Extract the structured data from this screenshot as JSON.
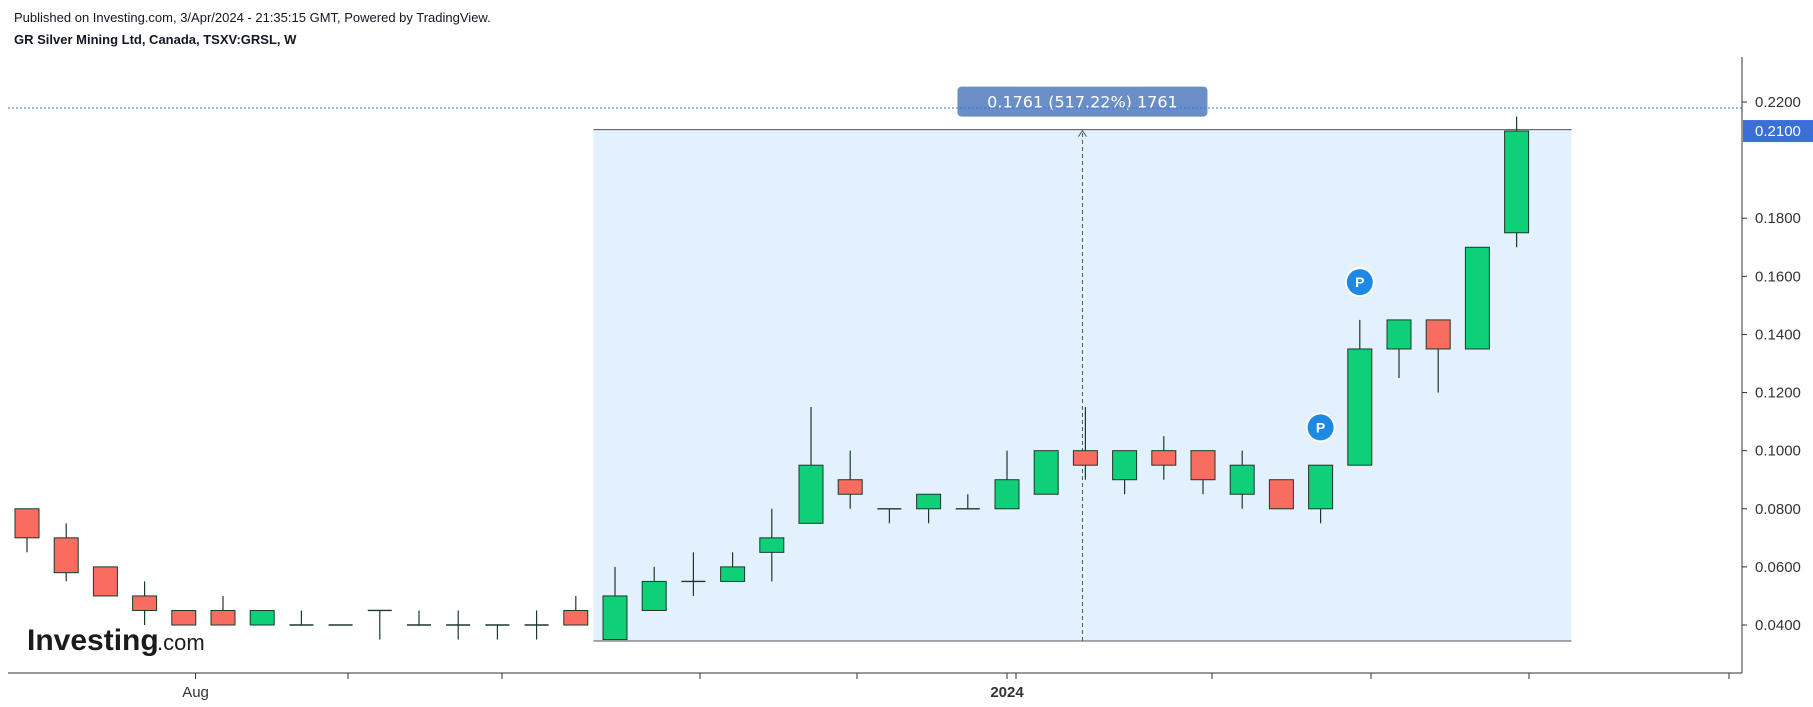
{
  "header": {
    "published": "Published on Investing.com, 3/Apr/2024 - 21:35:15 GMT, Powered by TradingView.",
    "symbol": "GR Silver Mining Ltd, Canada, TSXV:GRSL, W"
  },
  "logo": {
    "main": "Investing",
    "suffix": ".com"
  },
  "measure_label": "0.1761 (517.22%) 1761",
  "last_price_label": "0.2100",
  "colors": {
    "up": "#0fcf78",
    "down": "#f96d61",
    "wick": "#1a3a2a",
    "measure_fill": "#e3f0fd",
    "measure_label_bg": "#6a8fc7",
    "last_price_bg": "#3b6fd8",
    "pin": "#1e88e5"
  },
  "chart_data": {
    "type": "candlestick",
    "ylim": [
      0.03,
      0.23
    ],
    "y_ticks": [
      "0.2200",
      "0.1800",
      "0.1600",
      "0.1400",
      "0.1200",
      "0.1000",
      "0.0800",
      "0.0600",
      "0.0400"
    ],
    "x_labels": [
      {
        "label": "Aug",
        "index": 4.3,
        "bold": false
      },
      {
        "label": "2024",
        "index": 25,
        "bold": true
      }
    ],
    "candles": [
      {
        "o": 0.08,
        "h": 0.08,
        "l": 0.065,
        "c": 0.07
      },
      {
        "o": 0.07,
        "h": 0.075,
        "l": 0.055,
        "c": 0.058
      },
      {
        "o": 0.06,
        "h": 0.06,
        "l": 0.05,
        "c": 0.05
      },
      {
        "o": 0.05,
        "h": 0.055,
        "l": 0.04,
        "c": 0.045
      },
      {
        "o": 0.045,
        "h": 0.045,
        "l": 0.04,
        "c": 0.04
      },
      {
        "o": 0.045,
        "h": 0.05,
        "l": 0.04,
        "c": 0.04
      },
      {
        "o": 0.04,
        "h": 0.045,
        "l": 0.04,
        "c": 0.045
      },
      {
        "o": 0.04,
        "h": 0.045,
        "l": 0.04,
        "c": 0.04
      },
      {
        "o": 0.04,
        "h": 0.04,
        "l": 0.04,
        "c": 0.04
      },
      {
        "o": 0.045,
        "h": 0.045,
        "l": 0.035,
        "c": 0.045
      },
      {
        "o": 0.04,
        "h": 0.045,
        "l": 0.04,
        "c": 0.04
      },
      {
        "o": 0.04,
        "h": 0.045,
        "l": 0.035,
        "c": 0.04
      },
      {
        "o": 0.04,
        "h": 0.04,
        "l": 0.035,
        "c": 0.04
      },
      {
        "o": 0.04,
        "h": 0.045,
        "l": 0.035,
        "c": 0.04
      },
      {
        "o": 0.045,
        "h": 0.05,
        "l": 0.04,
        "c": 0.04
      },
      {
        "o": 0.035,
        "h": 0.06,
        "l": 0.035,
        "c": 0.05
      },
      {
        "o": 0.045,
        "h": 0.06,
        "l": 0.045,
        "c": 0.055
      },
      {
        "o": 0.055,
        "h": 0.065,
        "l": 0.05,
        "c": 0.055
      },
      {
        "o": 0.055,
        "h": 0.065,
        "l": 0.055,
        "c": 0.06
      },
      {
        "o": 0.065,
        "h": 0.08,
        "l": 0.055,
        "c": 0.07
      },
      {
        "o": 0.075,
        "h": 0.115,
        "l": 0.075,
        "c": 0.095
      },
      {
        "o": 0.09,
        "h": 0.1,
        "l": 0.08,
        "c": 0.085
      },
      {
        "o": 0.08,
        "h": 0.08,
        "l": 0.075,
        "c": 0.08
      },
      {
        "o": 0.08,
        "h": 0.085,
        "l": 0.075,
        "c": 0.085
      },
      {
        "o": 0.08,
        "h": 0.085,
        "l": 0.08,
        "c": 0.08
      },
      {
        "o": 0.08,
        "h": 0.1,
        "l": 0.08,
        "c": 0.09
      },
      {
        "o": 0.085,
        "h": 0.1,
        "l": 0.085,
        "c": 0.1
      },
      {
        "o": 0.1,
        "h": 0.115,
        "l": 0.09,
        "c": 0.095
      },
      {
        "o": 0.09,
        "h": 0.1,
        "l": 0.085,
        "c": 0.1
      },
      {
        "o": 0.1,
        "h": 0.105,
        "l": 0.09,
        "c": 0.095
      },
      {
        "o": 0.1,
        "h": 0.1,
        "l": 0.085,
        "c": 0.09
      },
      {
        "o": 0.085,
        "h": 0.1,
        "l": 0.08,
        "c": 0.095
      },
      {
        "o": 0.09,
        "h": 0.09,
        "l": 0.08,
        "c": 0.08
      },
      {
        "o": 0.08,
        "h": 0.095,
        "l": 0.075,
        "c": 0.095
      },
      {
        "o": 0.095,
        "h": 0.145,
        "l": 0.095,
        "c": 0.135
      },
      {
        "o": 0.135,
        "h": 0.145,
        "l": 0.125,
        "c": 0.145
      },
      {
        "o": 0.145,
        "h": 0.145,
        "l": 0.12,
        "c": 0.135
      },
      {
        "o": 0.135,
        "h": 0.17,
        "l": 0.135,
        "c": 0.17
      },
      {
        "o": 0.175,
        "h": 0.215,
        "l": 0.17,
        "c": 0.21
      }
    ],
    "pins": [
      {
        "label": "P",
        "index": 33,
        "value": 0.108
      },
      {
        "label": "P",
        "index": 34,
        "value": 0.158
      }
    ],
    "measure": {
      "from_index": 14.45,
      "to_index": 39.4,
      "low": 0.0345,
      "high": 0.2105
    },
    "last_price": 0.21
  }
}
